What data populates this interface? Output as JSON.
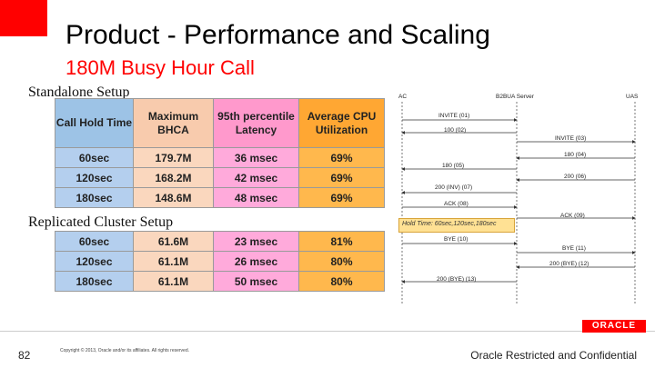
{
  "title": "Product - Performance and Scaling",
  "subtitle": "180M Busy Hour Call",
  "standalone": {
    "label": "Standalone Setup",
    "headers": [
      "Call Hold Time",
      "Maximum BHCA",
      "95th percentile Latency",
      "Average CPU Utilization"
    ],
    "rows": [
      [
        "60sec",
        "179.7M",
        "36 msec",
        "69%"
      ],
      [
        "120sec",
        "168.2M",
        "42 msec",
        "69%"
      ],
      [
        "180sec",
        "148.6M",
        "48 msec",
        "69%"
      ]
    ]
  },
  "replicated": {
    "label": "Replicated Cluster Setup",
    "rows": [
      [
        "60sec",
        "61.6M",
        "23 msec",
        "81%"
      ],
      [
        "120sec",
        "61.1M",
        "26 msec",
        "80%"
      ],
      [
        "180sec",
        "61.1M",
        "50 msec",
        "80%"
      ]
    ]
  },
  "flow": {
    "left": "AC",
    "center": "B2BUA Server",
    "right": "UAS",
    "hold_time": "Hold Time: 60sec,120sec,180sec",
    "messages": [
      "INVITE (01)",
      "100 (02)",
      "INVITE (03)",
      "180 (04)",
      "180 (05)",
      "200 (06)",
      "200 (INV) (07)",
      "ACK (08)",
      "ACK (09)",
      "BYE (10)",
      "BYE (11)",
      "200 (BYE) (12)",
      "200 (BYE) (13)"
    ]
  },
  "footer": {
    "page": "82",
    "copyright": "Copyright © 2013, Oracle and/or its affiliates. All rights reserved.",
    "confidential": "Oracle Restricted and Confidential",
    "logo": "ORACLE"
  },
  "colors": {
    "accent": "#ff0000",
    "col1": "#9dc3e6",
    "col2": "#f8cbad",
    "col3": "#ff99cc",
    "col4": "#ffa733",
    "hold_box": "#ffe194"
  }
}
